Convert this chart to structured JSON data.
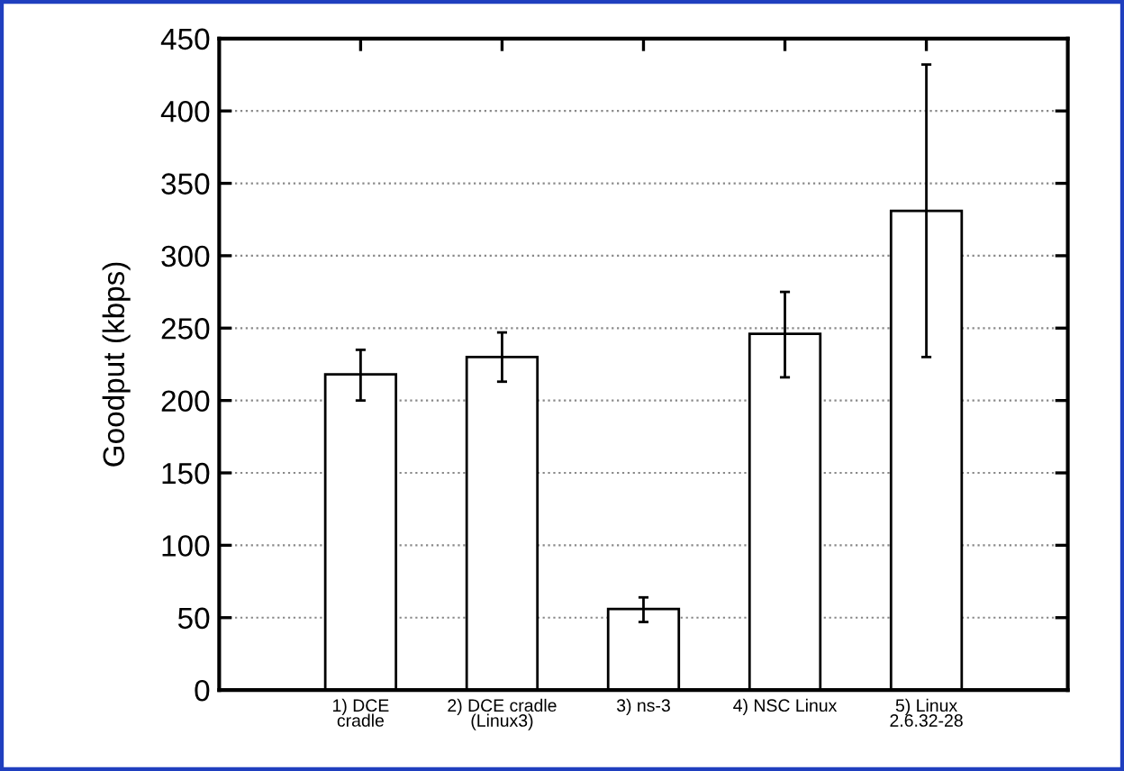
{
  "chart_data": {
    "type": "bar",
    "ylabel": "Goodput (kbps)",
    "categories": [
      "1) DCE\ncradle",
      "2) DCE cradle\n(Linux3)",
      "3) ns-3",
      "4) NSC Linux",
      "5) Linux\n2.6.32-28"
    ],
    "values": [
      218,
      230,
      56,
      246,
      331
    ],
    "errors": [
      [
        200,
        235
      ],
      [
        213,
        247
      ],
      [
        47,
        64
      ],
      [
        216,
        275
      ],
      [
        230,
        432
      ]
    ],
    "color": "#ffffff",
    "ylim": [
      0,
      450
    ],
    "yticks": [
      0,
      50,
      100,
      150,
      200,
      250,
      300,
      350,
      400,
      450
    ],
    "grid": "y"
  }
}
